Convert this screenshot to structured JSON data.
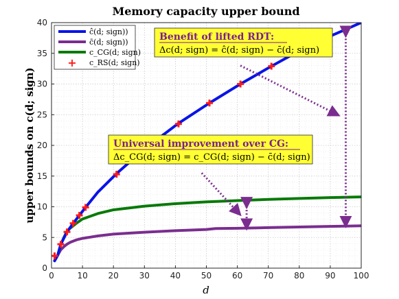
{
  "chart_data": {
    "type": "line",
    "title": "Memory capacity upper bound",
    "xlabel": "d",
    "ylabel": "upper bounds on c(d; sign)",
    "xlim": [
      0,
      100
    ],
    "ylim": [
      0,
      40
    ],
    "xticks": [
      "0",
      "10",
      "20",
      "30",
      "40",
      "50",
      "60",
      "70",
      "80",
      "90",
      "100"
    ],
    "yticks": [
      "0",
      "5",
      "10",
      "15",
      "20",
      "25",
      "30",
      "35",
      "40"
    ],
    "grid": true,
    "legend_position": "top-left",
    "series": [
      {
        "name": "ĉ(d; sign))",
        "color": "#0a14e6",
        "style": "line",
        "x": [
          1,
          2,
          3,
          5,
          7,
          9,
          11,
          15,
          21,
          30,
          41,
          51,
          61,
          71,
          80,
          90,
          100
        ],
        "y": [
          1.2,
          2.1,
          3.9,
          5.9,
          7.3,
          8.6,
          9.9,
          12.4,
          15.4,
          19.4,
          23.6,
          26.9,
          30.0,
          32.9,
          35.4,
          37.8,
          40.0
        ]
      },
      {
        "name": "c̄(d; sign))",
        "color": "#7a2d8f",
        "style": "line",
        "x": [
          1,
          2,
          3,
          4,
          5,
          6,
          8,
          10,
          15,
          20,
          30,
          40,
          50,
          53,
          60,
          70,
          80,
          90,
          100
        ],
        "y": [
          1.2,
          2.1,
          3.0,
          3.5,
          3.9,
          4.2,
          4.6,
          4.85,
          5.25,
          5.55,
          5.85,
          6.1,
          6.3,
          6.45,
          6.5,
          6.6,
          6.7,
          6.8,
          6.9
        ]
      },
      {
        "name": "c_CG(d; sign)",
        "color": "#087a08",
        "style": "line",
        "x": [
          1,
          2,
          3,
          4,
          5,
          6,
          7,
          8,
          10,
          15,
          20,
          30,
          40,
          50,
          60,
          70,
          80,
          90,
          100
        ],
        "y": [
          1.2,
          2.1,
          3.8,
          5.0,
          6.0,
          6.5,
          6.9,
          7.3,
          8.0,
          8.9,
          9.5,
          10.1,
          10.5,
          10.8,
          11.0,
          11.2,
          11.35,
          11.5,
          11.6
        ]
      },
      {
        "name": "c_RS(d; sign)",
        "color": "#ff1a1a",
        "style": "marker",
        "x": [
          1,
          3,
          5,
          7,
          9,
          11,
          21,
          41,
          51,
          61,
          71
        ],
        "y": [
          2.0,
          3.9,
          5.9,
          7.3,
          8.6,
          9.9,
          15.3,
          23.5,
          26.9,
          30.0,
          32.9
        ]
      }
    ],
    "annotations": [
      {
        "title": "Benefit of lifted RDT:",
        "formula": "Δc(d; sign) = ĉ(d; sign) − c̄(d; sign)"
      },
      {
        "title": "Universal improvement over CG:",
        "formula": "Δc_CG(d; sign) = c_CG(d; sign) − c̄(d; sign)"
      }
    ]
  }
}
